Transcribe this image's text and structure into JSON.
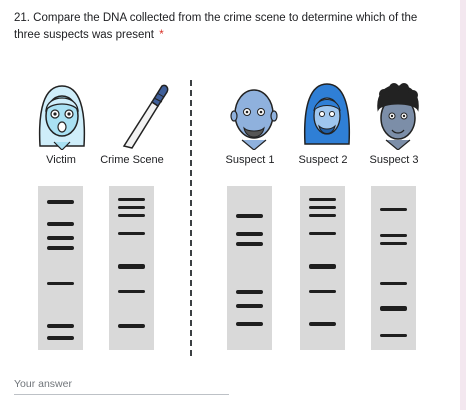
{
  "question": {
    "text": "21. Compare the DNA collected from the crime scene to determine which of the three suspects was present",
    "required_mark": "*"
  },
  "columns": [
    {
      "label": "Victim",
      "portrait_icon": "victim-face-icon"
    },
    {
      "label": "Crime Scene",
      "portrait_icon": "knife-icon"
    },
    {
      "label": "Suspect 1",
      "portrait_icon": "bald-bearded-man-icon"
    },
    {
      "label": "Suspect 2",
      "portrait_icon": "long-haired-man-icon"
    },
    {
      "label": "Suspect 3",
      "portrait_icon": "curly-haired-man-icon"
    }
  ],
  "answer": {
    "placeholder": "Your answer"
  },
  "colors": {
    "required": "#d93025",
    "gel": "#d9d9d9",
    "band": "#1f1f1f",
    "victim_skin": "#a9e1f3",
    "suspect1_skin": "#8fb1dd",
    "suspect2_hair": "#2f7fd6",
    "suspect3_skin": "#7c8ea8"
  }
}
